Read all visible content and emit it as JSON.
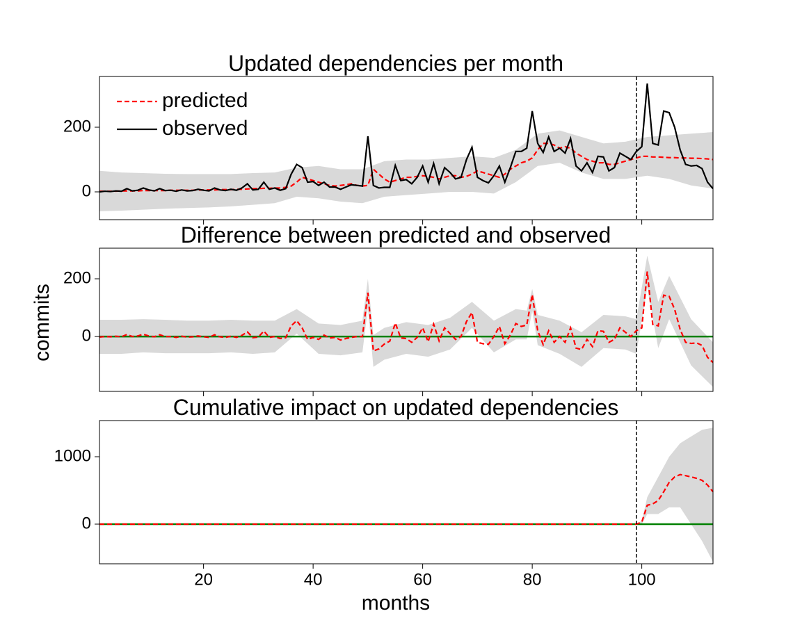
{
  "chart_data": [
    {
      "type": "line",
      "title": "Updated dependencies per month",
      "legend": "upper left",
      "xlim": [
        1,
        113
      ],
      "ylim": [
        -86,
        357
      ],
      "yticks": [
        0,
        200
      ],
      "vline": 99,
      "x": [
        1,
        2,
        3,
        4,
        5,
        6,
        7,
        8,
        9,
        10,
        11,
        12,
        13,
        14,
        15,
        16,
        17,
        18,
        19,
        20,
        21,
        22,
        23,
        24,
        25,
        26,
        27,
        28,
        29,
        30,
        31,
        32,
        33,
        34,
        35,
        36,
        37,
        38,
        39,
        40,
        41,
        42,
        43,
        44,
        45,
        46,
        47,
        48,
        49,
        50,
        51,
        52,
        53,
        54,
        55,
        56,
        57,
        58,
        59,
        60,
        61,
        62,
        63,
        64,
        65,
        66,
        67,
        68,
        69,
        70,
        71,
        72,
        73,
        74,
        75,
        76,
        77,
        78,
        79,
        80,
        81,
        82,
        83,
        84,
        85,
        86,
        87,
        88,
        89,
        90,
        91,
        92,
        93,
        94,
        95,
        96,
        97,
        98,
        99,
        100,
        101,
        102,
        103,
        104,
        105,
        106,
        107,
        108,
        109,
        110,
        111,
        112,
        113
      ],
      "band": {
        "color": "#d9d9d9",
        "x": [
          1,
          5,
          9,
          13,
          17,
          21,
          25,
          29,
          33,
          37,
          41,
          45,
          49,
          53,
          57,
          61,
          65,
          69,
          73,
          77,
          81,
          85,
          89,
          93,
          97,
          101,
          105,
          109,
          113
        ],
        "upper": [
          65,
          60,
          58,
          56,
          55,
          55,
          55,
          58,
          60,
          75,
          80,
          70,
          70,
          95,
          100,
          100,
          105,
          110,
          105,
          130,
          180,
          190,
          170,
          150,
          155,
          170,
          175,
          180,
          185
        ],
        "lower": [
          -60,
          -58,
          -55,
          -52,
          -50,
          -48,
          -45,
          -40,
          -35,
          -15,
          -20,
          -30,
          -35,
          -15,
          -10,
          -5,
          0,
          0,
          -5,
          30,
          80,
          90,
          60,
          40,
          40,
          50,
          40,
          20,
          10
        ]
      },
      "series": [
        {
          "name": "predicted",
          "color": "#ff0000",
          "dashed": true,
          "values": [
            2,
            2,
            2,
            2,
            3,
            3,
            3,
            3,
            4,
            4,
            4,
            4,
            4,
            5,
            5,
            5,
            5,
            5,
            6,
            6,
            6,
            6,
            7,
            7,
            7,
            8,
            8,
            9,
            10,
            10,
            11,
            11,
            12,
            12,
            14,
            18,
            30,
            45,
            40,
            35,
            30,
            25,
            20,
            18,
            20,
            22,
            25,
            20,
            18,
            20,
            70,
            55,
            40,
            30,
            35,
            40,
            45,
            45,
            48,
            50,
            48,
            45,
            40,
            45,
            50,
            50,
            45,
            48,
            55,
            65,
            60,
            55,
            50,
            45,
            55,
            70,
            80,
            90,
            95,
            105,
            130,
            150,
            150,
            145,
            135,
            140,
            135,
            120,
            110,
            100,
            95,
            90,
            90,
            85,
            85,
            90,
            95,
            100,
            105,
            110,
            110,
            108,
            108,
            107,
            106,
            106,
            105,
            105,
            104,
            104,
            103,
            102,
            100
          ]
        },
        {
          "name": "observed",
          "color": "#000000",
          "dashed": false,
          "values": [
            0,
            2,
            1,
            3,
            2,
            10,
            3,
            5,
            12,
            6,
            3,
            10,
            4,
            5,
            2,
            6,
            3,
            4,
            8,
            5,
            3,
            12,
            6,
            4,
            8,
            5,
            12,
            25,
            6,
            8,
            30,
            8,
            12,
            5,
            10,
            55,
            85,
            75,
            30,
            32,
            20,
            30,
            15,
            15,
            8,
            15,
            22,
            20,
            18,
            172,
            20,
            12,
            14,
            14,
            82,
            35,
            38,
            25,
            45,
            80,
            30,
            88,
            25,
            75,
            60,
            40,
            45,
            100,
            138,
            45,
            35,
            28,
            50,
            80,
            30,
            75,
            125,
            125,
            135,
            250,
            150,
            122,
            170,
            125,
            135,
            120,
            165,
            80,
            65,
            90,
            60,
            110,
            108,
            65,
            75,
            120,
            110,
            100,
            125,
            140,
            335,
            150,
            145,
            250,
            245,
            200,
            130,
            85,
            80,
            82,
            72,
            30,
            10
          ]
        }
      ]
    },
    {
      "type": "line",
      "title": "Difference between predicted and observed",
      "ylabel": "commits",
      "xlim": [
        1,
        113
      ],
      "ylim": [
        -190,
        306
      ],
      "yticks": [
        0,
        200
      ],
      "vline": 99,
      "hline": 0,
      "hline_color": "#008000",
      "x": [
        1,
        2,
        3,
        4,
        5,
        6,
        7,
        8,
        9,
        10,
        11,
        12,
        13,
        14,
        15,
        16,
        17,
        18,
        19,
        20,
        21,
        22,
        23,
        24,
        25,
        26,
        27,
        28,
        29,
        30,
        31,
        32,
        33,
        34,
        35,
        36,
        37,
        38,
        39,
        40,
        41,
        42,
        43,
        44,
        45,
        46,
        47,
        48,
        49,
        50,
        51,
        52,
        53,
        54,
        55,
        56,
        57,
        58,
        59,
        60,
        61,
        62,
        63,
        64,
        65,
        66,
        67,
        68,
        69,
        70,
        71,
        72,
        73,
        74,
        75,
        76,
        77,
        78,
        79,
        80,
        81,
        82,
        83,
        84,
        85,
        86,
        87,
        88,
        89,
        90,
        91,
        92,
        93,
        94,
        95,
        96,
        97,
        98,
        99,
        100,
        101,
        102,
        103,
        104,
        105,
        106,
        107,
        108,
        109,
        110,
        111,
        112,
        113
      ],
      "band": {
        "color": "#d9d9d9",
        "x": [
          1,
          5,
          9,
          13,
          17,
          21,
          25,
          29,
          33,
          37,
          41,
          45,
          49,
          50,
          51,
          53,
          57,
          61,
          65,
          69,
          73,
          77,
          79,
          80,
          81,
          85,
          89,
          93,
          97,
          99,
          101,
          103,
          105,
          109,
          113
        ],
        "upper": [
          58,
          58,
          60,
          58,
          55,
          55,
          58,
          55,
          55,
          95,
          45,
          40,
          55,
          200,
          5,
          30,
          50,
          40,
          65,
          120,
          55,
          95,
          90,
          165,
          75,
          55,
          15,
          75,
          70,
          60,
          280,
          120,
          210,
          60,
          -20
        ],
        "lower": [
          -60,
          -60,
          -55,
          -58,
          -58,
          -58,
          -55,
          -60,
          -55,
          10,
          -60,
          -65,
          -55,
          100,
          -105,
          -80,
          -60,
          -70,
          -45,
          30,
          -55,
          -10,
          -10,
          90,
          -30,
          -60,
          -105,
          -40,
          -45,
          -60,
          170,
          -40,
          60,
          -100,
          -175
        ]
      },
      "series": [
        {
          "color": "#ff0000",
          "dashed": true,
          "values": [
            -2,
            0,
            -1,
            1,
            -1,
            7,
            0,
            2,
            8,
            2,
            -1,
            6,
            0,
            0,
            -3,
            1,
            -2,
            -1,
            2,
            -1,
            -3,
            6,
            -1,
            -3,
            1,
            -3,
            4,
            16,
            -4,
            -2,
            19,
            -3,
            0,
            -7,
            -4,
            37,
            55,
            30,
            -10,
            -3,
            -10,
            5,
            -5,
            -3,
            -12,
            -7,
            -3,
            0,
            0,
            152,
            -50,
            -43,
            -26,
            -16,
            47,
            -5,
            -7,
            -20,
            -3,
            30,
            -18,
            43,
            -15,
            30,
            10,
            -10,
            0,
            52,
            83,
            -20,
            -25,
            -27,
            0,
            35,
            -25,
            5,
            45,
            35,
            40,
            145,
            20,
            -28,
            20,
            -20,
            0,
            -20,
            30,
            -40,
            -45,
            -10,
            -35,
            20,
            18,
            -20,
            -10,
            30,
            15,
            0,
            20,
            30,
            225,
            42,
            37,
            143,
            139,
            94,
            25,
            -20,
            -24,
            -22,
            -31,
            -72,
            -90
          ]
        }
      ]
    },
    {
      "type": "line",
      "title": "Cumulative impact on updated dependencies",
      "xlabel": "months",
      "xlim": [
        1,
        113
      ],
      "ylim": [
        -588,
        1536
      ],
      "yticks": [
        0,
        1000
      ],
      "xticks": [
        20,
        40,
        60,
        80,
        100
      ],
      "vline": 99,
      "hline": 0,
      "hline_color": "#008000",
      "x": [
        1,
        2,
        3,
        4,
        5,
        6,
        7,
        8,
        9,
        10,
        11,
        12,
        13,
        14,
        15,
        16,
        17,
        18,
        19,
        20,
        21,
        22,
        23,
        24,
        25,
        26,
        27,
        28,
        29,
        30,
        31,
        32,
        33,
        34,
        35,
        36,
        37,
        38,
        39,
        40,
        41,
        42,
        43,
        44,
        45,
        46,
        47,
        48,
        49,
        50,
        51,
        52,
        53,
        54,
        55,
        56,
        57,
        58,
        59,
        60,
        61,
        62,
        63,
        64,
        65,
        66,
        67,
        68,
        69,
        70,
        71,
        72,
        73,
        74,
        75,
        76,
        77,
        78,
        79,
        80,
        81,
        82,
        83,
        84,
        85,
        86,
        87,
        88,
        89,
        90,
        91,
        92,
        93,
        94,
        95,
        96,
        97,
        98,
        99,
        100,
        101,
        102,
        103,
        104,
        105,
        106,
        107,
        108,
        109,
        110,
        111,
        112,
        113
      ],
      "band": {
        "color": "#d9d9d9",
        "x": [
          1,
          99,
          100,
          101,
          103,
          105,
          107,
          109,
          111,
          113
        ],
        "upper": [
          0,
          0,
          50,
          400,
          700,
          1000,
          1200,
          1300,
          1400,
          1430
        ],
        "lower": [
          0,
          0,
          0,
          150,
          150,
          250,
          250,
          0,
          -250,
          -560
        ]
      },
      "series": [
        {
          "color": "#ff0000",
          "dashed": true,
          "values": [
            0,
            0,
            0,
            0,
            0,
            0,
            0,
            0,
            0,
            0,
            0,
            0,
            0,
            0,
            0,
            0,
            0,
            0,
            0,
            0,
            0,
            0,
            0,
            0,
            0,
            0,
            0,
            0,
            0,
            0,
            0,
            0,
            0,
            0,
            0,
            0,
            0,
            0,
            0,
            0,
            0,
            0,
            0,
            0,
            0,
            0,
            0,
            0,
            0,
            0,
            0,
            0,
            0,
            0,
            0,
            0,
            0,
            0,
            0,
            0,
            0,
            0,
            0,
            0,
            0,
            0,
            0,
            0,
            0,
            0,
            0,
            0,
            0,
            0,
            0,
            0,
            0,
            0,
            0,
            0,
            0,
            0,
            0,
            0,
            0,
            0,
            0,
            0,
            0,
            0,
            0,
            0,
            0,
            0,
            0,
            0,
            0,
            0,
            0,
            30,
            280,
            300,
            350,
            480,
            620,
            700,
            735,
            720,
            700,
            680,
            650,
            580,
            480
          ]
        }
      ]
    }
  ]
}
